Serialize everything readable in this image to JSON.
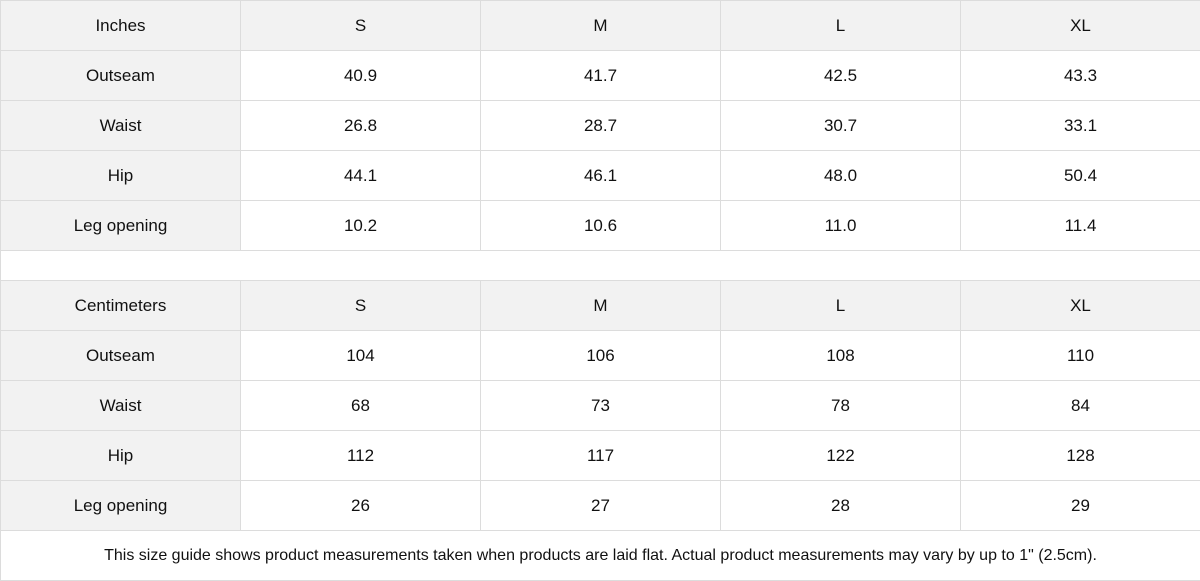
{
  "inches": {
    "header": [
      "Inches",
      "S",
      "M",
      "L",
      "XL"
    ],
    "rows": [
      [
        "Outseam",
        "40.9",
        "41.7",
        "42.5",
        "43.3"
      ],
      [
        "Waist",
        "26.8",
        "28.7",
        "30.7",
        "33.1"
      ],
      [
        "Hip",
        "44.1",
        "46.1",
        "48.0",
        "50.4"
      ],
      [
        "Leg opening",
        "10.2",
        "10.6",
        "11.0",
        "11.4"
      ]
    ]
  },
  "centimeters": {
    "header": [
      "Centimeters",
      "S",
      "M",
      "L",
      "XL"
    ],
    "rows": [
      [
        "Outseam",
        "104",
        "106",
        "108",
        "110"
      ],
      [
        "Waist",
        "68",
        "73",
        "78",
        "84"
      ],
      [
        "Hip",
        "112",
        "117",
        "122",
        "128"
      ],
      [
        "Leg opening",
        "26",
        "27",
        "28",
        "29"
      ]
    ]
  },
  "footnote": "This size guide shows product measurements taken when products are laid flat.  Actual product measurements may vary by up to 1\" (2.5cm).",
  "colors": {
    "header_bg": "#f2f2f2",
    "border": "#dcdcdc"
  }
}
